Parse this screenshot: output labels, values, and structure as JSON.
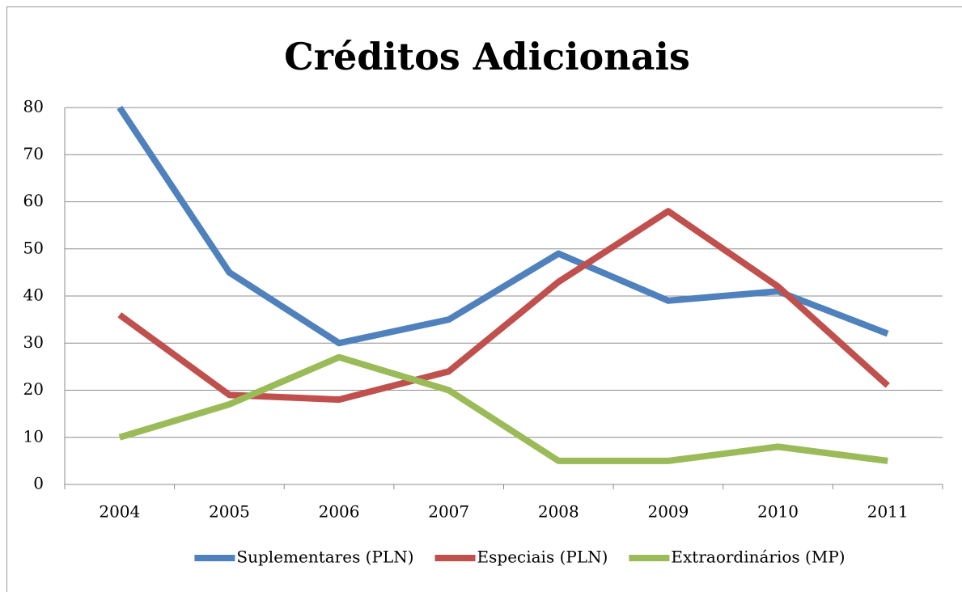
{
  "chart_data": {
    "type": "line",
    "title": "Créditos Adicionais",
    "categories": [
      "2004",
      "2005",
      "2006",
      "2007",
      "2008",
      "2009",
      "2010",
      "2011"
    ],
    "series": [
      {
        "name": "Suplementares (PLN)",
        "color": "#4f81bd",
        "values": [
          80,
          45,
          30,
          35,
          49,
          39,
          41,
          32
        ]
      },
      {
        "name": "Especiais (PLN)",
        "color": "#c0504d",
        "values": [
          36,
          19,
          18,
          24,
          43,
          58,
          42,
          21
        ]
      },
      {
        "name": "Extraordinários (MP)",
        "color": "#9bbb59",
        "values": [
          10,
          17,
          27,
          20,
          5,
          5,
          8,
          5
        ]
      }
    ],
    "ylim": [
      0,
      80
    ],
    "yticks": [
      0,
      10,
      20,
      30,
      40,
      50,
      60,
      70,
      80
    ],
    "grid": true,
    "legend": "bottom"
  }
}
